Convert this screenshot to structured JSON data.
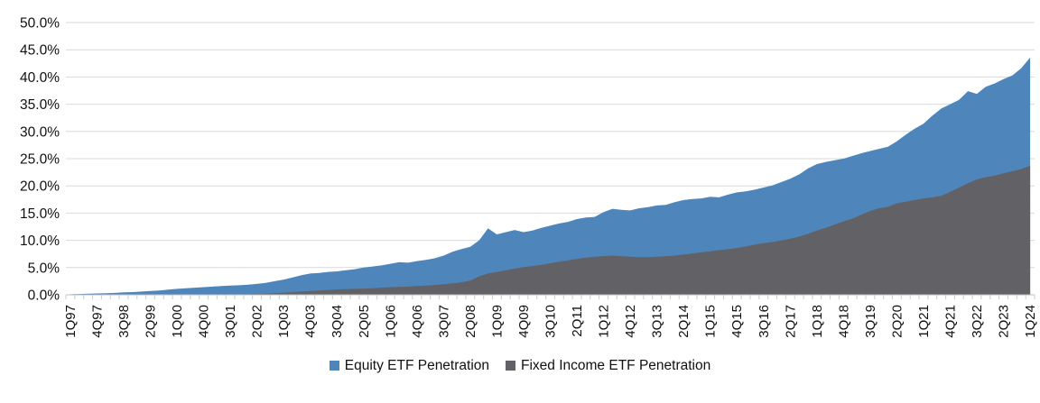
{
  "chart_data": {
    "type": "area",
    "title": "",
    "ylabel": "",
    "xlabel": "",
    "ylim": [
      0,
      50
    ],
    "grid": "horizontal",
    "legend_position": "bottom",
    "overlay": true,
    "y_tick_labels": [
      "0.0%",
      "5.0%",
      "10.0%",
      "15.0%",
      "20.0%",
      "25.0%",
      "30.0%",
      "35.0%",
      "40.0%",
      "45.0%",
      "50.0%"
    ],
    "y_tick_step": 5,
    "x_tick_labels": [
      "1Q97",
      "4Q97",
      "3Q98",
      "2Q99",
      "1Q00",
      "4Q00",
      "3Q01",
      "2Q02",
      "1Q03",
      "4Q03",
      "3Q04",
      "2Q05",
      "1Q06",
      "4Q06",
      "3Q07",
      "2Q08",
      "1Q09",
      "4Q09",
      "3Q10",
      "2Q11",
      "1Q12",
      "4Q12",
      "3Q13",
      "2Q14",
      "1Q15",
      "4Q15",
      "3Q16",
      "2Q17",
      "1Q18",
      "4Q18",
      "3Q19",
      "2Q20",
      "1Q21",
      "4Q21",
      "3Q22",
      "2Q23",
      "1Q24"
    ],
    "x_label_every": 3,
    "quarters": [
      "1Q97",
      "2Q97",
      "3Q97",
      "4Q97",
      "1Q98",
      "2Q98",
      "3Q98",
      "4Q98",
      "1Q99",
      "2Q99",
      "3Q99",
      "4Q99",
      "1Q00",
      "2Q00",
      "3Q00",
      "4Q00",
      "1Q01",
      "2Q01",
      "3Q01",
      "4Q01",
      "1Q02",
      "2Q02",
      "3Q02",
      "4Q02",
      "1Q03",
      "2Q03",
      "3Q03",
      "4Q03",
      "1Q04",
      "2Q04",
      "3Q04",
      "4Q04",
      "1Q05",
      "2Q05",
      "3Q05",
      "4Q05",
      "1Q06",
      "2Q06",
      "3Q06",
      "4Q06",
      "1Q07",
      "2Q07",
      "3Q07",
      "4Q07",
      "1Q08",
      "2Q08",
      "3Q08",
      "4Q08",
      "1Q09",
      "2Q09",
      "3Q09",
      "4Q09",
      "1Q10",
      "2Q10",
      "3Q10",
      "4Q10",
      "1Q11",
      "2Q11",
      "3Q11",
      "4Q11",
      "1Q12",
      "2Q12",
      "3Q12",
      "4Q12",
      "1Q13",
      "2Q13",
      "3Q13",
      "4Q13",
      "1Q14",
      "2Q14",
      "3Q14",
      "4Q14",
      "1Q15",
      "2Q15",
      "3Q15",
      "4Q15",
      "1Q16",
      "2Q16",
      "3Q16",
      "4Q16",
      "1Q17",
      "2Q17",
      "3Q17",
      "4Q17",
      "1Q18",
      "2Q18",
      "3Q18",
      "4Q18",
      "1Q19",
      "2Q19",
      "3Q19",
      "4Q19",
      "1Q20",
      "2Q20",
      "3Q20",
      "4Q20",
      "1Q21",
      "2Q21",
      "3Q21",
      "4Q21",
      "1Q22",
      "2Q22",
      "3Q22",
      "4Q22",
      "1Q23",
      "2Q23",
      "3Q23",
      "4Q23",
      "1Q24"
    ],
    "series": [
      {
        "name": "Equity ETF Penetration",
        "color": "#4e86bc",
        "values": [
          0.1,
          0.15,
          0.2,
          0.25,
          0.3,
          0.35,
          0.45,
          0.5,
          0.6,
          0.7,
          0.8,
          0.95,
          1.1,
          1.2,
          1.3,
          1.4,
          1.5,
          1.6,
          1.7,
          1.75,
          1.85,
          2.0,
          2.2,
          2.5,
          2.8,
          3.2,
          3.6,
          3.9,
          4.0,
          4.2,
          4.3,
          4.5,
          4.7,
          5.0,
          5.2,
          5.4,
          5.7,
          6.0,
          5.9,
          6.2,
          6.4,
          6.7,
          7.2,
          7.9,
          8.4,
          8.8,
          10.0,
          12.2,
          11.1,
          11.5,
          11.9,
          11.5,
          11.8,
          12.3,
          12.7,
          13.1,
          13.4,
          13.9,
          14.2,
          14.3,
          15.2,
          15.8,
          15.6,
          15.5,
          15.9,
          16.1,
          16.4,
          16.5,
          17.0,
          17.4,
          17.6,
          17.7,
          18.0,
          17.9,
          18.4,
          18.8,
          19.0,
          19.3,
          19.7,
          20.1,
          20.7,
          21.3,
          22.1,
          23.2,
          24.0,
          24.4,
          24.7,
          25.0,
          25.5,
          26.0,
          26.4,
          26.8,
          27.2,
          28.2,
          29.4,
          30.5,
          31.4,
          32.9,
          34.2,
          35.0,
          35.8,
          37.4,
          36.9,
          38.2,
          38.8,
          39.6,
          40.3,
          41.6,
          43.6
        ]
      },
      {
        "name": "Fixed Income ETF Penetration",
        "color": "#626266",
        "values": [
          0,
          0,
          0,
          0,
          0,
          0,
          0,
          0,
          0,
          0,
          0,
          0,
          0,
          0,
          0,
          0,
          0,
          0,
          0,
          0.05,
          0.1,
          0.15,
          0.2,
          0.3,
          0.4,
          0.5,
          0.6,
          0.7,
          0.8,
          0.9,
          1.0,
          1.05,
          1.1,
          1.15,
          1.2,
          1.3,
          1.4,
          1.45,
          1.5,
          1.6,
          1.7,
          1.8,
          1.95,
          2.1,
          2.3,
          2.6,
          3.4,
          3.9,
          4.2,
          4.5,
          4.8,
          5.1,
          5.3,
          5.5,
          5.8,
          6.1,
          6.3,
          6.6,
          6.8,
          7.0,
          7.1,
          7.2,
          7.1,
          7.0,
          6.9,
          6.9,
          7.0,
          7.1,
          7.2,
          7.4,
          7.6,
          7.8,
          8.0,
          8.2,
          8.4,
          8.6,
          8.9,
          9.2,
          9.5,
          9.7,
          10.0,
          10.3,
          10.7,
          11.2,
          11.8,
          12.3,
          12.9,
          13.5,
          14.0,
          14.7,
          15.4,
          15.9,
          16.2,
          16.8,
          17.1,
          17.4,
          17.7,
          17.9,
          18.2,
          18.9,
          19.7,
          20.5,
          21.2,
          21.6,
          21.9,
          22.3,
          22.7,
          23.1,
          23.7
        ]
      }
    ],
    "colors": {
      "gridline": "#d9d9d9",
      "axis_line": "#bfbfbf",
      "tick_mark": "#cccccc",
      "label_text": "#111111"
    }
  },
  "legend": {
    "equity_label": "Equity ETF Penetration",
    "fixed_income_label": "Fixed Income ETF Penetration"
  }
}
